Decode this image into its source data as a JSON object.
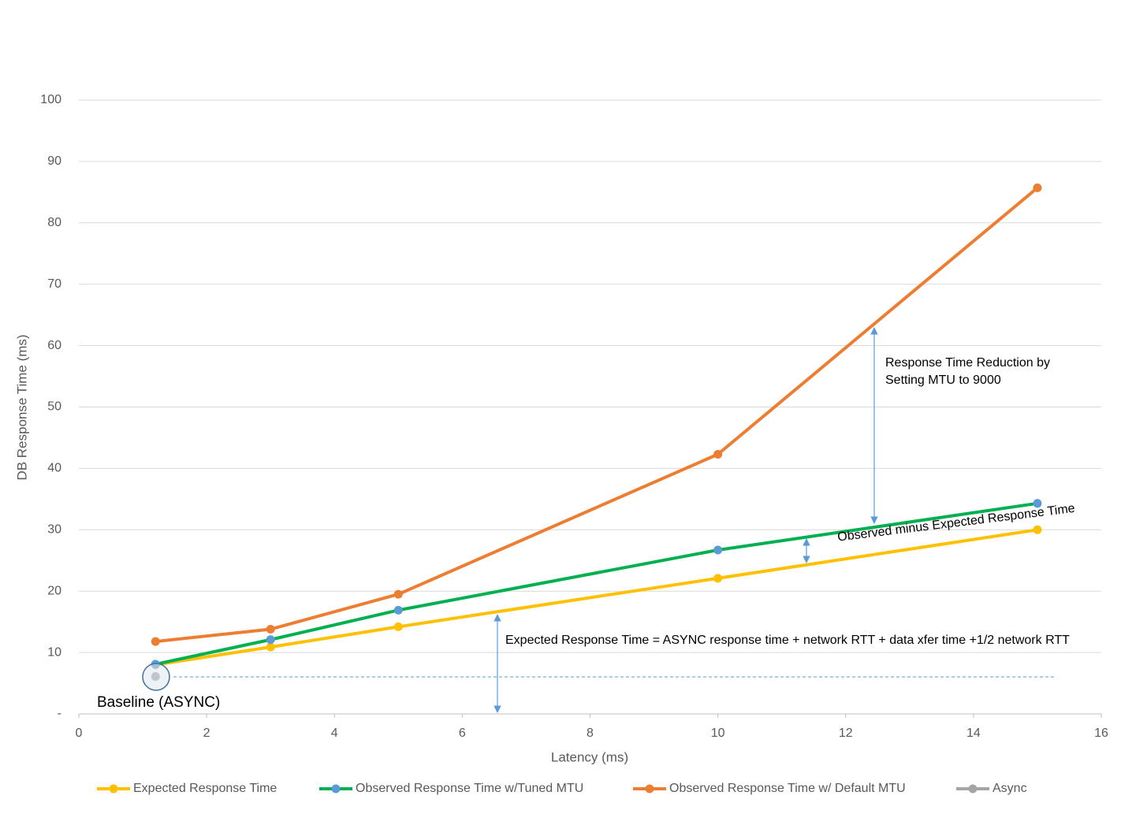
{
  "chart_data": {
    "type": "line",
    "xlabel": "Latency (ms)",
    "ylabel": "DB Response Time (ms)",
    "xlim": [
      0,
      16
    ],
    "xticks": [
      0,
      2,
      4,
      6,
      8,
      10,
      12,
      14,
      16
    ],
    "ylim": [
      0,
      100
    ],
    "yticks": [
      {
        "value": 0,
        "label": "-"
      },
      10,
      20,
      30,
      40,
      50,
      60,
      70,
      80,
      90,
      100
    ],
    "grid": true,
    "legend": "bottom",
    "series": [
      {
        "name": "Expected Response Time",
        "color": "#FFC000",
        "marker_color": "#FFC000",
        "x": [
          1.2,
          3,
          5,
          10,
          15
        ],
        "values": [
          8,
          10.9,
          14.2,
          22.1,
          30
        ]
      },
      {
        "name": "Observed Response Time w/Tuned MTU",
        "color": "#00B050",
        "marker_color": "#5B9BD5",
        "x": [
          1.2,
          3,
          5,
          10,
          15
        ],
        "values": [
          8.1,
          12.1,
          16.9,
          26.7,
          34.3
        ]
      },
      {
        "name": "Observed Response Time w/ Default MTU",
        "color": "#ED7D31",
        "marker_color": "#ED7D31",
        "x": [
          1.2,
          3,
          5,
          10,
          15
        ],
        "values": [
          11.8,
          13.8,
          19.5,
          42.3,
          85.7
        ]
      },
      {
        "name": "Async",
        "color": "#A5A5A5",
        "marker_color": "#A5A5A5",
        "x": [
          1.2
        ],
        "values": [
          6.1
        ]
      }
    ],
    "annotations": [
      "Response Time Reduction by",
      "Setting MTU to 9000",
      "Observed minus Expected Response Time",
      "Expected Response Time = ASYNC response time + network RTT + data xfer time +1/2 network RTT",
      "Baseline (ASYNC)"
    ]
  }
}
